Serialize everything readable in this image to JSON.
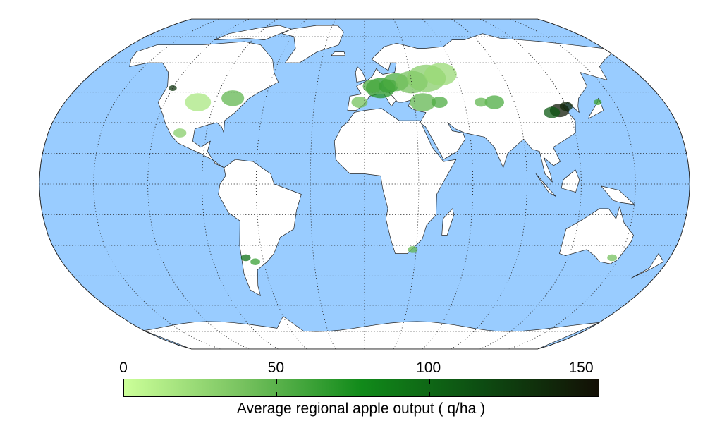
{
  "map": {
    "projection": "Robinson",
    "ocean_color": "#99ccff",
    "land_color": "#ffffff",
    "graticule": "dotted"
  },
  "colorbar": {
    "label": "Average regional apple output ( q/ha )",
    "ticks": [
      "0",
      "50",
      "100",
      "150"
    ],
    "tick_values": [
      0,
      50,
      100,
      150
    ],
    "range": [
      0,
      156
    ],
    "colors": [
      "#ccff99",
      "#77c25f",
      "#118a1a",
      "#0d4d12",
      "#130f05"
    ]
  }
}
